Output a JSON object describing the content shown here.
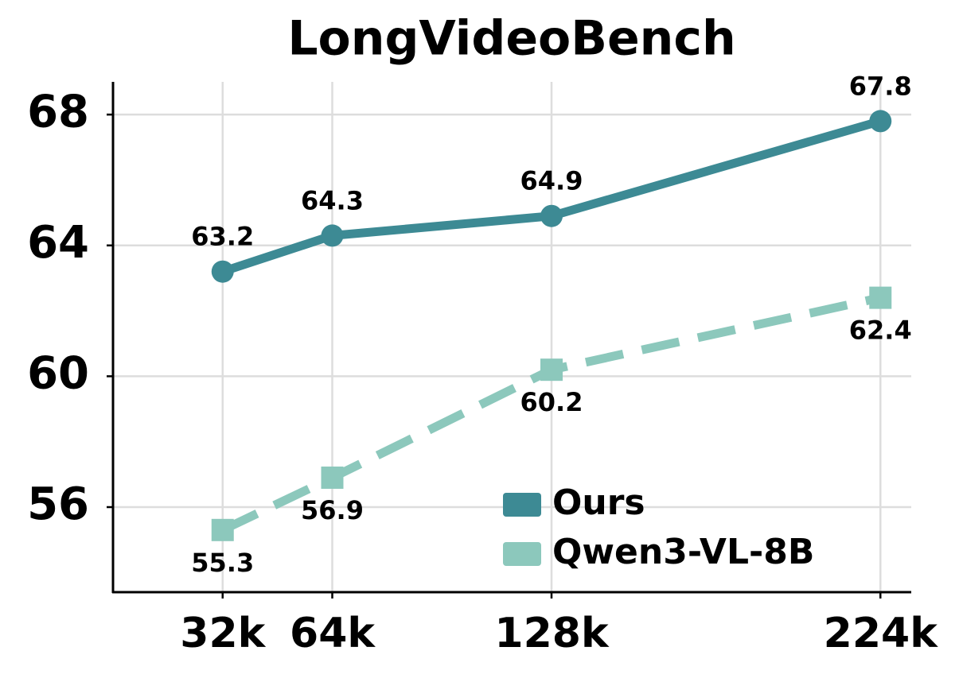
{
  "chart_data": {
    "type": "line",
    "title": "LongVideoBench",
    "x": [
      32,
      64,
      128,
      224
    ],
    "xticks": [
      {
        "value": 32,
        "label": "32k"
      },
      {
        "value": 64,
        "label": "64k"
      },
      {
        "value": 128,
        "label": "128k"
      },
      {
        "value": 224,
        "label": "224k"
      }
    ],
    "xlim": [
      0,
      233
    ],
    "ylim": [
      53.4,
      69
    ],
    "yticks": [
      56,
      60,
      64,
      68
    ],
    "grid": true,
    "legend": "lower right",
    "series": [
      {
        "name": "Ours",
        "color": "#3d8a94",
        "linestyle": "solid",
        "marker": "circle",
        "values": [
          63.2,
          64.3,
          64.9,
          67.8
        ]
      },
      {
        "name": "Qwen3-VL-8B",
        "color": "#8cc8bc",
        "linestyle": "dashed",
        "marker": "square",
        "values": [
          55.3,
          56.9,
          60.2,
          62.4
        ]
      }
    ]
  }
}
